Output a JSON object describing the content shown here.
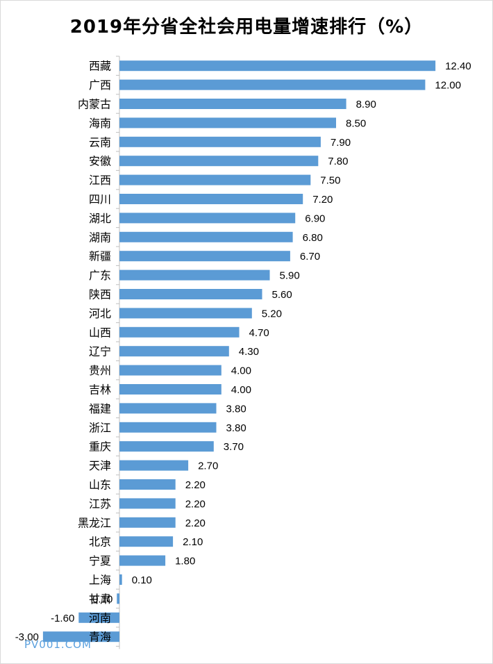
{
  "chart_data": {
    "type": "bar",
    "orientation": "horizontal",
    "title": "2019年分省全社会用电量增速排行（%）",
    "xlabel": "",
    "ylabel": "",
    "xlim": [
      -3.0,
      12.4
    ],
    "grid": false,
    "legend": "none",
    "bar_color": "#5b9bd5",
    "categories": [
      "西藏",
      "广西",
      "内蒙古",
      "海南",
      "云南",
      "安徽",
      "江西",
      "四川",
      "湖北",
      "湖南",
      "新疆",
      "广东",
      "陕西",
      "河北",
      "山西",
      "辽宁",
      "贵州",
      "吉林",
      "福建",
      "浙江",
      "重庆",
      "天津",
      "山东",
      "江苏",
      "黑龙江",
      "北京",
      "宁夏",
      "上海",
      "甘肃",
      "河南",
      "青海"
    ],
    "values": [
      12.4,
      12.0,
      8.9,
      8.5,
      7.9,
      7.8,
      7.5,
      7.2,
      6.9,
      6.8,
      6.7,
      5.9,
      5.6,
      5.2,
      4.7,
      4.3,
      4.0,
      4.0,
      3.8,
      3.8,
      3.7,
      2.7,
      2.2,
      2.2,
      2.2,
      2.1,
      1.8,
      0.1,
      -0.1,
      -1.6,
      -3.0
    ],
    "value_labels": [
      "12.40",
      "12.00",
      "8.90",
      "8.50",
      "7.90",
      "7.80",
      "7.50",
      "7.20",
      "6.90",
      "6.80",
      "6.70",
      "5.90",
      "5.60",
      "5.20",
      "4.70",
      "4.30",
      "4.00",
      "4.00",
      "3.80",
      "3.80",
      "3.70",
      "2.70",
      "2.20",
      "2.20",
      "2.20",
      "2.10",
      "1.80",
      "0.10",
      "-0.10",
      "-1.60",
      "-3.00"
    ]
  },
  "watermark": "PV001.COM"
}
